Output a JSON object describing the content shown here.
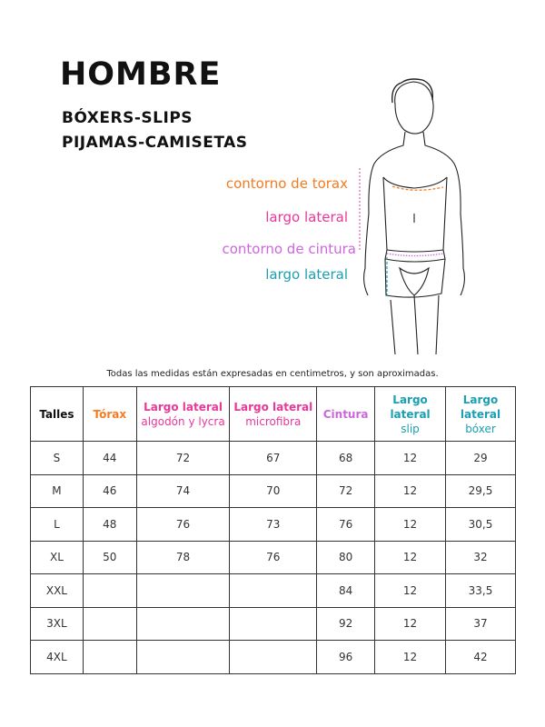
{
  "title": "HOMBRE",
  "subtitle_lines": [
    "BÓXERS-SLIPS",
    "PIJAMAS-CAMISETAS"
  ],
  "colors": {
    "orange": "#f47b20",
    "pink": "#e8389a",
    "violet": "#cc66dd",
    "teal": "#1a9fb3"
  },
  "figure_labels": {
    "chest": "contorno de torax",
    "side_length_top": "largo lateral",
    "waist": "contorno de cintura",
    "side_length_bottom": "largo lateral"
  },
  "note": "Todas las medidas están expresadas en centimetros, y son aproximadas.",
  "table": {
    "headers": [
      {
        "bold": "Talles",
        "sub": ""
      },
      {
        "bold": "Tórax",
        "sub": ""
      },
      {
        "bold": "Largo lateral",
        "sub": "algodón y lycra"
      },
      {
        "bold": "Largo lateral",
        "sub": "microfibra"
      },
      {
        "bold": "Cintura",
        "sub": ""
      },
      {
        "bold": "Largo lateral",
        "sub": "slip"
      },
      {
        "bold": "Largo lateral",
        "sub": "bóxer"
      }
    ],
    "rows": [
      [
        "S",
        "44",
        "72",
        "67",
        "68",
        "12",
        "29"
      ],
      [
        "M",
        "46",
        "74",
        "70",
        "72",
        "12",
        "29,5"
      ],
      [
        "L",
        "48",
        "76",
        "73",
        "76",
        "12",
        "30,5"
      ],
      [
        "XL",
        "50",
        "78",
        "76",
        "80",
        "12",
        "32"
      ],
      [
        "XXL",
        "",
        "",
        "",
        "84",
        "12",
        "33,5"
      ],
      [
        "3XL",
        "",
        "",
        "",
        "92",
        "12",
        "37"
      ],
      [
        "4XL",
        "",
        "",
        "",
        "96",
        "12",
        "42"
      ]
    ]
  }
}
